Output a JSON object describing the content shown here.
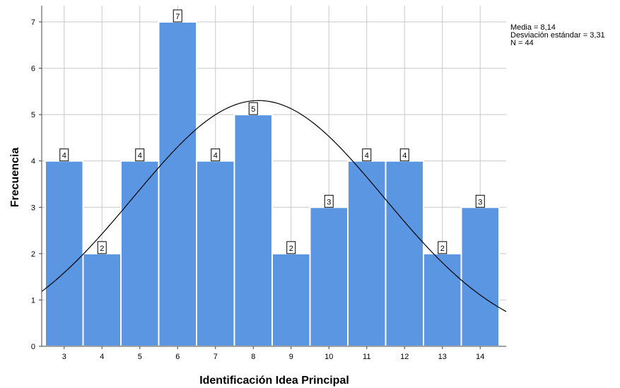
{
  "chart_data": {
    "type": "bar",
    "xlabel": "Identificación Idea Principal",
    "ylabel": "Frecuencia",
    "categories": [
      "3",
      "4",
      "5",
      "6",
      "7",
      "8",
      "9",
      "10",
      "11",
      "12",
      "13",
      "14"
    ],
    "values": [
      4,
      2,
      4,
      7,
      4,
      5,
      2,
      3,
      4,
      4,
      2,
      3
    ],
    "ylim": [
      0,
      7
    ],
    "yticks": [
      0,
      1,
      2,
      3,
      4,
      5,
      6,
      7
    ],
    "grid": true,
    "data_labels": true,
    "overlay": {
      "type": "normal-curve",
      "mean": 8.14,
      "sd": 3.31,
      "n": 44
    },
    "stats": [
      "Media = 8,14",
      "Desviación estándar = 3,31",
      "N = 44"
    ],
    "colors": {
      "bar": "#5b96e3",
      "bar_edge": "#ffffff",
      "grid": "#c8c8c8",
      "axis": "#444444",
      "curve": "#000000"
    }
  }
}
